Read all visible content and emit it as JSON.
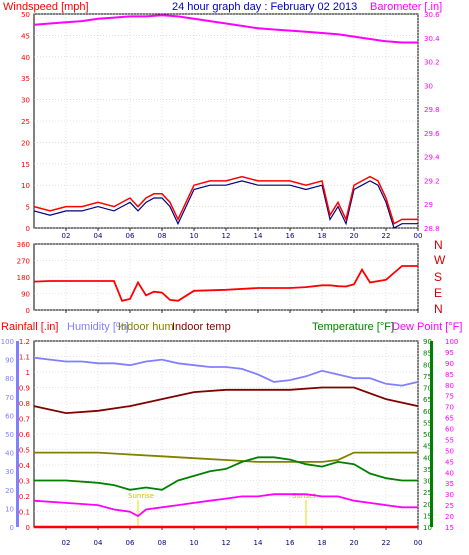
{
  "chart_data": [
    {
      "type": "line",
      "title": "24 hour graph day : February 02 2013",
      "y_left_label": "Windspeed [mph]",
      "y_right_label": "Barometer [.in]",
      "x_ticks": [
        "02",
        "04",
        "06",
        "08",
        "10",
        "12",
        "14",
        "16",
        "18",
        "20",
        "22",
        "00"
      ],
      "y_left_ticks": [
        "0",
        "5",
        "10",
        "15",
        "20",
        "25",
        "30",
        "35",
        "40",
        "45",
        "50"
      ],
      "y_right_ticks": [
        "28.8",
        "29",
        "29.2",
        "29.4",
        "29.6",
        "29.8",
        "30",
        "30.2",
        "30.4",
        "30.6"
      ],
      "y_left_range": [
        0,
        50
      ],
      "y_right_range": [
        28.8,
        30.6
      ],
      "grid": true,
      "colors": {
        "windspeed": "#ff0000",
        "wind_avg": "#000080",
        "barometer": "#ff00ff"
      },
      "series": [
        {
          "name": "Windspeed",
          "axis": "left",
          "x": [
            0,
            1,
            2,
            3,
            4,
            5,
            6,
            6.5,
            7,
            7.5,
            8,
            8.5,
            9,
            10,
            11,
            12,
            13,
            14,
            15,
            16,
            17,
            18,
            18.5,
            19,
            19.5,
            20,
            20.5,
            21,
            21.5,
            22,
            22.5,
            23,
            23.5,
            24
          ],
          "values": [
            5,
            4,
            5,
            5,
            6,
            5,
            7,
            5,
            7,
            8,
            8,
            6,
            2,
            10,
            11,
            11,
            12,
            11,
            11,
            11,
            10,
            11,
            3,
            6,
            2,
            10,
            11,
            12,
            11,
            7,
            1,
            2,
            2,
            2
          ]
        },
        {
          "name": "Barometer",
          "axis": "right",
          "x": [
            0,
            1,
            2,
            3,
            4,
            5,
            6,
            7,
            8,
            9,
            10,
            11,
            12,
            13,
            14,
            15,
            16,
            17,
            18,
            19,
            20,
            21,
            22,
            23,
            24
          ],
          "values": [
            30.51,
            30.52,
            30.53,
            30.54,
            30.56,
            30.57,
            30.58,
            30.58,
            30.59,
            30.58,
            30.56,
            30.54,
            30.52,
            30.5,
            30.48,
            30.47,
            30.46,
            30.45,
            30.44,
            30.43,
            30.41,
            30.39,
            30.37,
            30.36,
            30.36
          ]
        }
      ]
    },
    {
      "type": "line",
      "title": "",
      "y_left_ticks": [
        "0",
        "90",
        "180",
        "270",
        "360"
      ],
      "y_right_ticks": [
        "N",
        "W",
        "S",
        "E",
        "N"
      ],
      "y_range": [
        0,
        360
      ],
      "grid": true,
      "series": [
        {
          "name": "Wind direction",
          "x": [
            0,
            1,
            2,
            3,
            4,
            5,
            5.5,
            6,
            6.5,
            7,
            7.5,
            8,
            8.5,
            9,
            10,
            12,
            14,
            16,
            17,
            18,
            18.5,
            19,
            19.5,
            20,
            20.5,
            21,
            22,
            23,
            24
          ],
          "values": [
            155,
            158,
            158,
            158,
            158,
            158,
            50,
            60,
            150,
            80,
            100,
            95,
            55,
            50,
            105,
            110,
            120,
            120,
            125,
            135,
            135,
            130,
            128,
            140,
            220,
            150,
            165,
            240,
            240
          ]
        }
      ]
    },
    {
      "type": "line",
      "title": "",
      "y_left_labels": [
        "Rainfall [.in]",
        "Humidity [%]",
        "Indoor hum",
        "Indoor temp"
      ],
      "y_right_labels": [
        "Temperature [°F]",
        "Dew Point [°F]"
      ],
      "rain_ticks": [
        "0",
        "0.1",
        "0.2",
        "0.3",
        "0.4",
        "0.5",
        "0.6",
        "0.7",
        "0.8",
        "0.9",
        "1",
        "1.1",
        "1.2"
      ],
      "humidity_ticks": [
        "0",
        "10",
        "20",
        "30",
        "40",
        "50",
        "60",
        "70",
        "80",
        "90",
        "100"
      ],
      "temp_ticks": [
        "10",
        "15",
        "20",
        "25",
        "30",
        "35",
        "40",
        "45",
        "50",
        "55",
        "60",
        "65",
        "70",
        "75",
        "80",
        "85",
        "90"
      ],
      "dew_ticks": [
        "15",
        "20",
        "25",
        "30",
        "35",
        "40",
        "45",
        "50",
        "55",
        "60",
        "65",
        "70",
        "75",
        "80",
        "85",
        "90",
        "95",
        "100"
      ],
      "ranges": {
        "rain": [
          0,
          1.2
        ],
        "humidity": [
          0,
          100
        ],
        "temperature": [
          10,
          90
        ],
        "dew_point": [
          15,
          100
        ]
      },
      "annotations": [
        {
          "text": "Sunrise",
          "x": 6.5
        },
        {
          "text": "Sunset",
          "x": 17.0
        }
      ],
      "grid": true,
      "series": [
        {
          "name": "Humidity",
          "axis": "humidity",
          "x": [
            0,
            1,
            2,
            3,
            4,
            5,
            6,
            7,
            8,
            9,
            10,
            11,
            12,
            13,
            14,
            15,
            16,
            17,
            18,
            19,
            20,
            21,
            22,
            23,
            24
          ],
          "values": [
            91,
            90,
            89,
            89,
            88,
            88,
            87,
            89,
            90,
            88,
            87,
            86,
            86,
            85,
            82,
            78,
            79,
            81,
            84,
            82,
            80,
            80,
            77,
            76,
            78
          ]
        },
        {
          "name": "Indoor hum",
          "axis": "humidity",
          "x": [
            0,
            2,
            4,
            6,
            8,
            10,
            12,
            14,
            16,
            18,
            19,
            20,
            22,
            24
          ],
          "values": [
            40,
            40,
            40,
            39,
            38,
            37,
            36,
            35,
            35,
            35,
            36,
            40,
            40,
            40
          ]
        },
        {
          "name": "Indoor temp",
          "axis": "temperature",
          "x": [
            0,
            2,
            4,
            6,
            8,
            10,
            12,
            14,
            16,
            18,
            20,
            22,
            24
          ],
          "values": [
            62,
            59,
            60,
            62,
            65,
            68,
            69,
            69,
            69,
            70,
            70,
            65,
            62
          ]
        },
        {
          "name": "Temperature",
          "axis": "temperature",
          "x": [
            0,
            2,
            4,
            5,
            6,
            7,
            8,
            9,
            10,
            11,
            12,
            13,
            14,
            15,
            16,
            17,
            18,
            19,
            20,
            21,
            22,
            23,
            24
          ],
          "values": [
            30,
            30,
            29,
            28,
            26,
            27,
            26,
            30,
            32,
            34,
            35,
            38,
            40,
            40,
            39,
            37,
            36,
            38,
            37,
            33,
            31,
            30,
            30
          ]
        },
        {
          "name": "Dew Point",
          "axis": "dew_point",
          "x": [
            0,
            2,
            4,
            5,
            6,
            6.5,
            7,
            8,
            9,
            10,
            11,
            12,
            13,
            14,
            15,
            16,
            17,
            18,
            19,
            20,
            21,
            22,
            23,
            24
          ],
          "values": [
            27,
            26,
            25,
            23,
            22,
            20,
            23,
            24,
            25,
            26,
            27,
            28,
            29,
            29,
            30,
            30,
            30,
            29,
            29,
            27,
            26,
            25,
            24,
            24
          ]
        },
        {
          "name": "Rainfall",
          "axis": "rain",
          "x": [
            0,
            24
          ],
          "values": [
            0,
            0
          ]
        }
      ]
    }
  ]
}
